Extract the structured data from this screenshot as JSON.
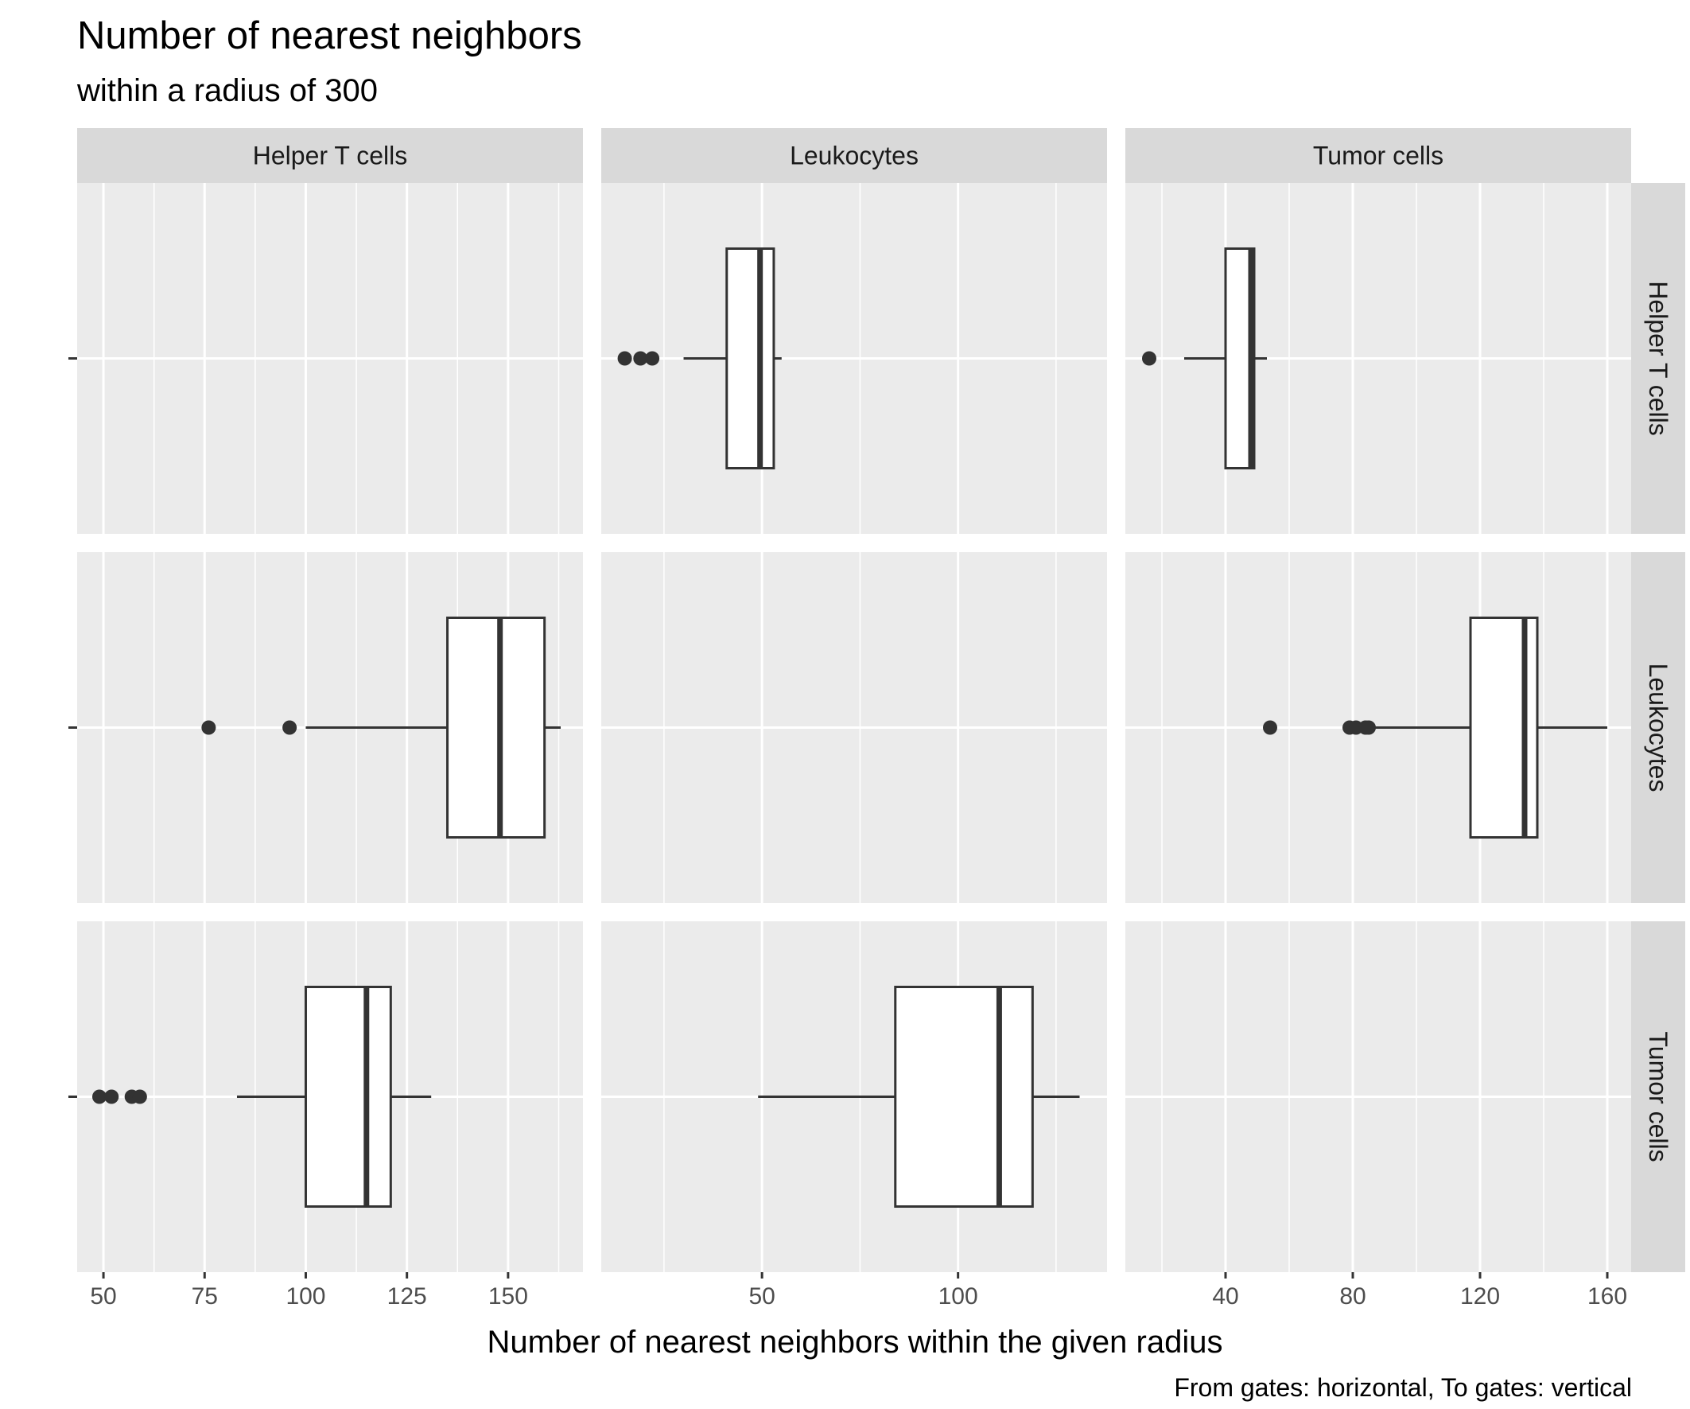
{
  "chart_data": {
    "type": "boxplot",
    "title": "Number of nearest neighbors",
    "subtitle": "within a radius of 300",
    "xlabel": "Number of nearest neighbors within the given radius",
    "caption": "From gates: horizontal, To gates: vertical",
    "facet_columns": [
      "Helper T cells",
      "Leukocytes",
      "Tumor cells"
    ],
    "facet_rows": [
      "Helper T cells",
      "Leukocytes",
      "Tumor cells"
    ],
    "grid": true,
    "free_x": true,
    "column_axes": [
      {
        "xlim": [
          43.5,
          168.5
        ],
        "ticks": [
          50,
          75,
          100,
          125,
          150
        ],
        "tick_labels": [
          "50",
          "75",
          "100",
          "125",
          "150"
        ]
      },
      {
        "xlim": [
          9,
          138
        ],
        "ticks": [
          50,
          100
        ],
        "tick_labels": [
          "50",
          "100"
        ]
      },
      {
        "xlim": [
          8.5,
          167.5
        ],
        "ticks": [
          40,
          80,
          120,
          160
        ],
        "tick_labels": [
          "40",
          "80",
          "120",
          "160"
        ]
      }
    ],
    "panels": [
      {
        "row": 0,
        "col": 1,
        "whisker_low": 30,
        "q1": 41,
        "median": 49.5,
        "q3": 53,
        "whisker_high": 55,
        "outliers": [
          15,
          19,
          22
        ]
      },
      {
        "row": 0,
        "col": 2,
        "whisker_low": 27,
        "q1": 40,
        "median": 48,
        "q3": 49,
        "whisker_high": 53,
        "outliers": [
          16
        ]
      },
      {
        "row": 1,
        "col": 0,
        "whisker_low": 100,
        "q1": 135,
        "median": 148,
        "q3": 159,
        "whisker_high": 163,
        "outliers": [
          76,
          96
        ]
      },
      {
        "row": 1,
        "col": 2,
        "whisker_low": 85,
        "q1": 117,
        "median": 134,
        "q3": 138,
        "whisker_high": 160,
        "outliers": [
          54,
          79,
          81,
          84,
          85
        ]
      },
      {
        "row": 2,
        "col": 0,
        "whisker_low": 83,
        "q1": 100,
        "median": 115,
        "q3": 121,
        "whisker_high": 131,
        "outliers": [
          49,
          52,
          57,
          59
        ]
      },
      {
        "row": 2,
        "col": 1,
        "whisker_low": 49,
        "q1": 84,
        "median": 110.5,
        "q3": 119,
        "whisker_high": 131,
        "outliers": []
      }
    ]
  }
}
